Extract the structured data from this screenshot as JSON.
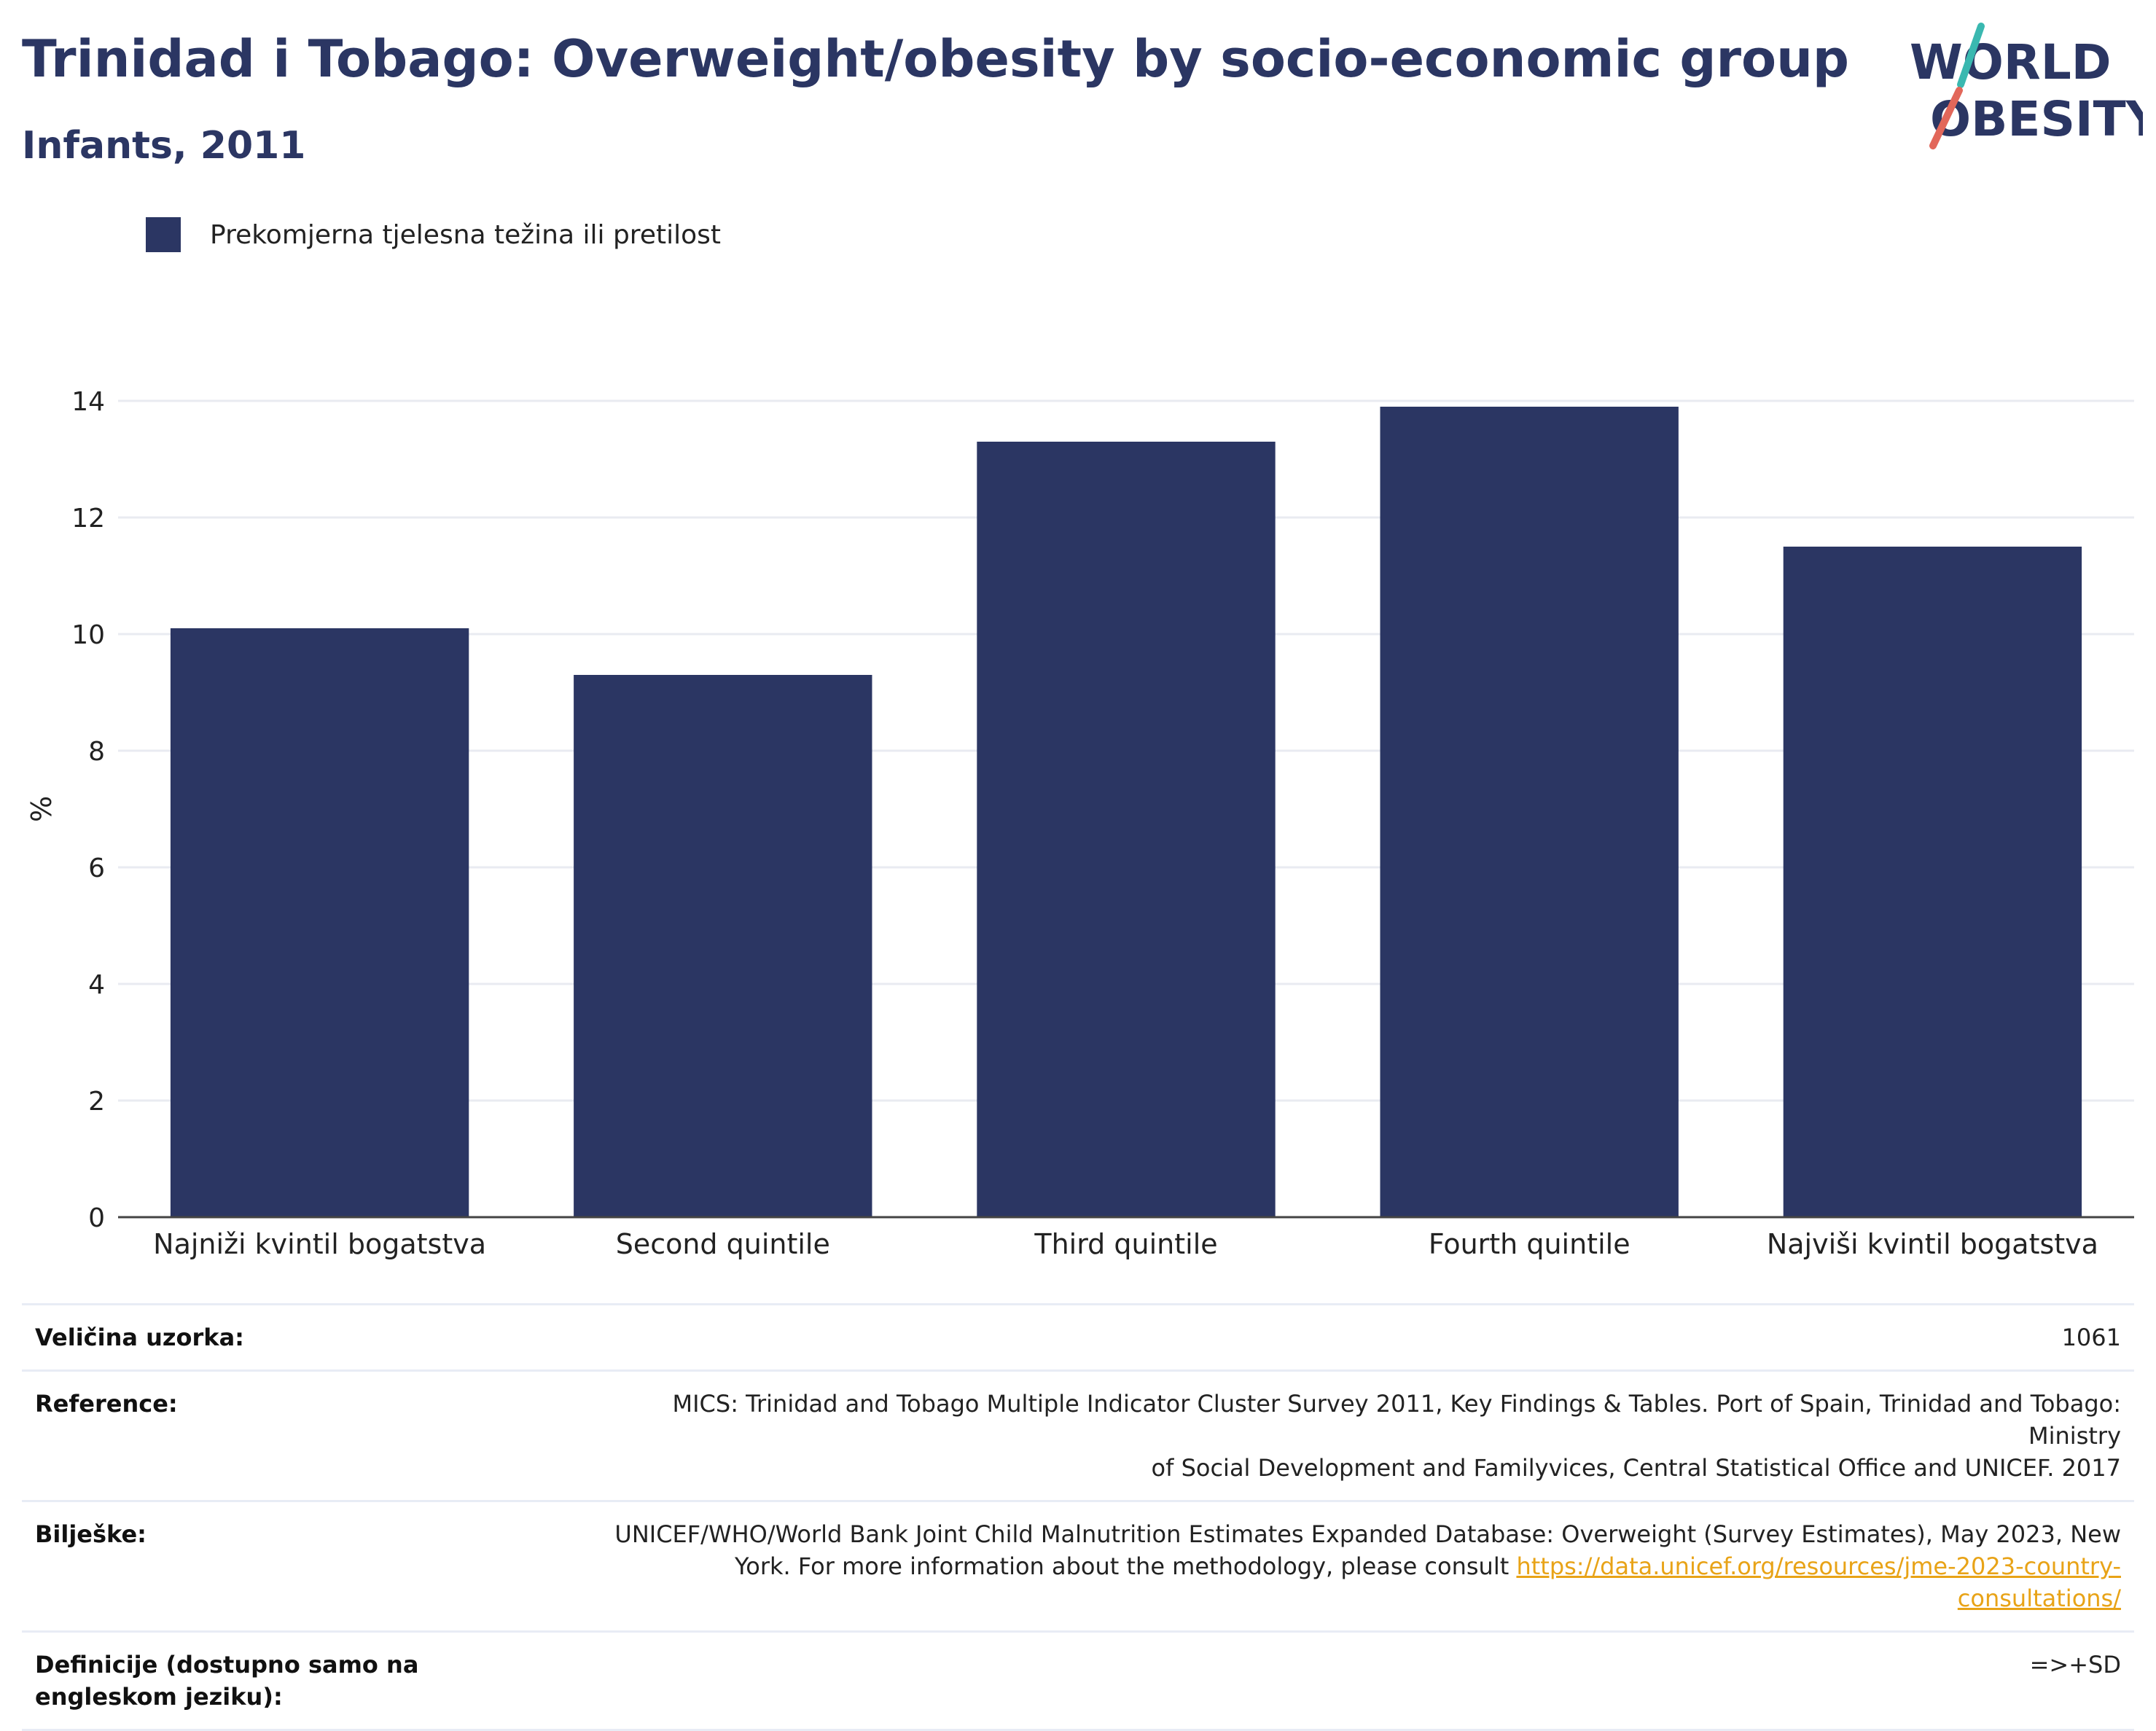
{
  "header": {
    "title": "Trinidad i Tobago: Overweight/obesity by socio-economic group",
    "subtitle": "Infants, 2011"
  },
  "logo": {
    "line1": "WORLD",
    "line2": "OBESITY",
    "colors": {
      "text": "#2b3663",
      "slash_top": "#3ab8b0",
      "slash_bottom": "#e2675a"
    }
  },
  "legend": {
    "label": "Prekomjerna tjelesna težina ili pretilost",
    "color": "#2b3663"
  },
  "chart_data": {
    "type": "bar",
    "categories": [
      "Najniži kvintil bogatstva",
      "Second quintile",
      "Third quintile",
      "Fourth quintile",
      "Najviši kvintil bogatstva"
    ],
    "series": [
      {
        "name": "Prekomjerna tjelesna težina ili pretilost",
        "values": [
          10.1,
          9.3,
          13.3,
          13.9,
          11.5
        ],
        "color": "#2b3663"
      }
    ],
    "ylabel": "%",
    "ylim": [
      0,
      14
    ],
    "yticks": [
      0,
      2,
      4,
      6,
      8,
      10,
      12,
      14
    ],
    "grid": true,
    "legend_position": "top-left"
  },
  "info": {
    "sample_size": {
      "label": "Veličina uzorka:",
      "value": "1061"
    },
    "reference": {
      "label": "Reference:",
      "line1": "MICS: Trinidad and Tobago Multiple Indicator Cluster Survey 2011, Key Findings & Tables. Port of Spain, Trinidad and Tobago: Ministry",
      "line2": "of Social Development and Familyvices, Central Statistical Office and UNICEF. 2017"
    },
    "notes": {
      "label": "Bilješke:",
      "line1": "UNICEF/WHO/World Bank Joint Child Malnutrition Estimates Expanded Database: Overweight (Survey Estimates), May 2023, New",
      "line2": "York. For more information about the methodology, please consult ",
      "link": "https://data.unicef.org/resources/jme-2023-country-consultations/"
    },
    "definitions": {
      "label": "Definicije (dostupno samo na engleskom jeziku):",
      "value": "=>+SD"
    }
  }
}
